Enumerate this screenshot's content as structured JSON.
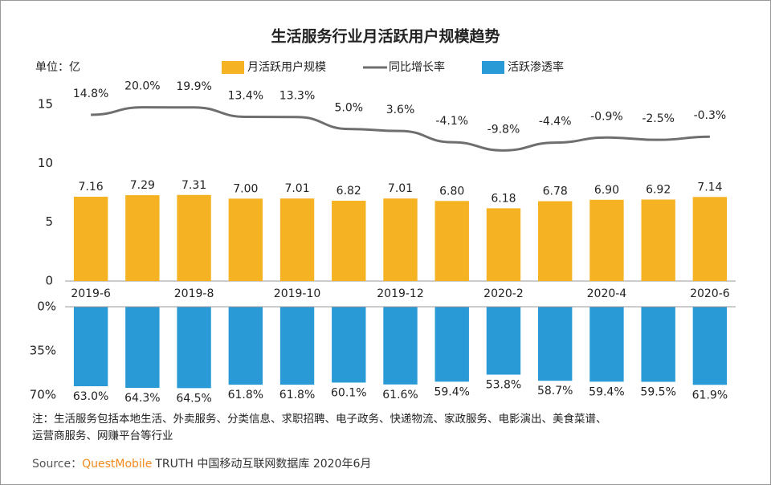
{
  "chart_data": [
    {
      "type": "bar",
      "title": "生活服务行业月活跃用户规模趋势",
      "unit": "单位：亿",
      "categories": [
        "2019-6",
        null,
        "2019-8",
        null,
        "2019-10",
        null,
        "2019-12",
        null,
        "2020-2",
        null,
        "2020-4",
        null,
        "2020-6"
      ],
      "series": [
        {
          "name": "月活跃用户规模",
          "color": "#f5b324",
          "values": [
            7.16,
            7.29,
            7.31,
            7.0,
            7.01,
            6.82,
            7.01,
            6.8,
            6.18,
            6.78,
            6.9,
            6.92,
            7.14
          ],
          "value_labels": [
            "7.16",
            "7.29",
            "7.31",
            "7.00",
            "7.01",
            "6.82",
            "7.01",
            "6.80",
            "6.18",
            "6.78",
            "6.90",
            "6.92",
            "7.14"
          ]
        },
        {
          "name": "同比增长率",
          "type": "line",
          "axis": "y2",
          "color": "#6e6e6e",
          "values": [
            14.8,
            20.0,
            19.9,
            13.4,
            13.3,
            5.0,
            3.6,
            -4.1,
            -9.8,
            -4.4,
            -0.9,
            -2.5,
            -0.3
          ],
          "value_labels": [
            "14.8%",
            "20.0%",
            "19.9%",
            "13.4%",
            "13.3%",
            "5.0%",
            "3.6%",
            "-4.1%",
            "-9.8%",
            "-4.4%",
            "-0.9%",
            "-2.5%",
            "-0.3%"
          ]
        }
      ],
      "ylim": [
        0,
        15
      ],
      "yticks": [
        0,
        5,
        10,
        15
      ],
      "y2lim": [
        -100,
        22
      ]
    },
    {
      "type": "bar",
      "inverted": true,
      "series": [
        {
          "name": "活跃渗透率",
          "color": "#2a9ad6",
          "values": [
            63.0,
            64.3,
            64.5,
            61.8,
            61.8,
            60.1,
            61.6,
            59.4,
            53.8,
            58.7,
            59.4,
            59.5,
            61.9
          ],
          "value_labels": [
            "63.0%",
            "64.3%",
            "64.5%",
            "61.8%",
            "61.8%",
            "60.1%",
            "61.6%",
            "59.4%",
            "53.8%",
            "58.7%",
            "59.4%",
            "59.5%",
            "61.9%"
          ]
        }
      ],
      "ylim": [
        0,
        70
      ],
      "yticks": [
        {
          "value": 0,
          "label": "0%"
        },
        {
          "value": 35,
          "label": "35%"
        },
        {
          "value": 70,
          "label": "70%"
        }
      ]
    }
  ],
  "note": [
    "注：生活服务包括本地生活、外卖服务、分类信息、求职招聘、电子政务、快递物流、家政服务、电影演出、美食菜谱、",
    "运营商服务、网赚平台等行业"
  ],
  "source": {
    "label": "Source：",
    "brand": "QuestMobile",
    "text": "TRUTH 中国移动互联网数据库 2020年6月"
  }
}
